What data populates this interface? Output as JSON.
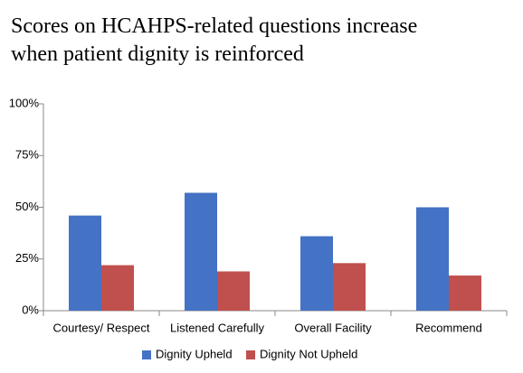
{
  "chart_data": {
    "type": "bar",
    "title": "Scores on HCAHPS-related questions increase when patient dignity is reinforced",
    "categories": [
      "Courtesy/ Respect",
      "Listened Carefully",
      "Overall Facility",
      "Recommend"
    ],
    "series": [
      {
        "name": "Dignity Upheld",
        "color": "#4472c4",
        "values": [
          46,
          57,
          36,
          50
        ]
      },
      {
        "name": "Dignity Not Upheld",
        "color": "#c0504d",
        "values": [
          22,
          19,
          23,
          17
        ]
      }
    ],
    "ylim": [
      0,
      100
    ],
    "yticks": [
      {
        "value": 0,
        "label": "0%"
      },
      {
        "value": 25,
        "label": "25%"
      },
      {
        "value": 50,
        "label": "50%"
      },
      {
        "value": 75,
        "label": "75%"
      },
      {
        "value": 100,
        "label": "100%"
      }
    ],
    "grid": false,
    "legend": "bottom"
  }
}
